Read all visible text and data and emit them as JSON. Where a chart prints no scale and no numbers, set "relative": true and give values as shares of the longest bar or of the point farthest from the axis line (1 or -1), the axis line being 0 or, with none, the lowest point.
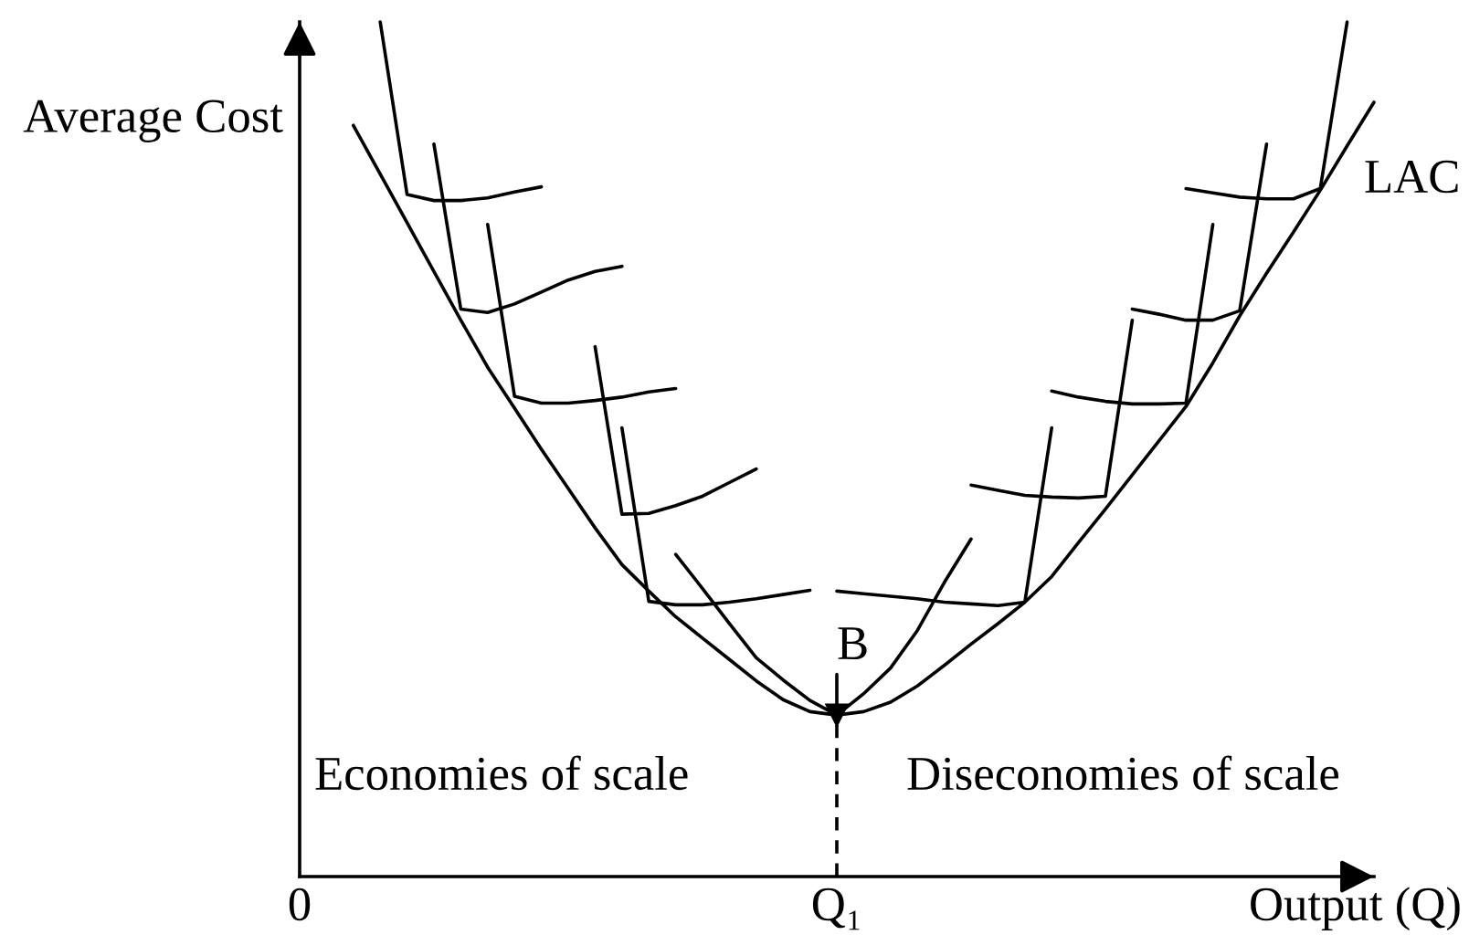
{
  "chart_data": {
    "type": "line",
    "relative": true,
    "xlabel": "Output (Q)",
    "ylabel": "Average Cost",
    "line_style": "solid",
    "categories": [
      "0",
      null,
      null,
      null,
      null,
      null,
      null,
      null,
      null,
      null,
      null,
      null,
      null,
      null,
      null,
      null,
      null,
      null,
      null,
      null,
      "Q₁",
      null,
      null,
      null,
      null,
      null,
      null,
      null,
      null,
      null,
      null,
      null,
      null,
      null,
      null,
      null,
      null,
      null,
      null,
      null,
      null
    ],
    "annotations": [
      {
        "text": "B",
        "x": "Q₁",
        "y": 0.189
      },
      "Economies of scale",
      "Diseconomies of scale"
    ],
    "series": [
      {
        "name": "LAC",
        "color": "#000000",
        "values": [
          null,
          null,
          0.879,
          0.822,
          0.765,
          0.708,
          0.651,
          0.596,
          0.548,
          0.5,
          0.454,
          0.408,
          0.365,
          0.334,
          0.304,
          0.279,
          0.254,
          0.229,
          0.207,
          0.193,
          0.189,
          0.193,
          0.204,
          0.223,
          0.247,
          0.272,
          0.296,
          0.321,
          0.351,
          0.391,
          0.43,
          0.47,
          0.51,
          0.55,
          0.601,
          0.656,
          0.706,
          0.754,
          0.803,
          0.855,
          0.906
        ]
      },
      {
        "color": "#000000",
        "values": [
          null,
          null,
          null,
          1.0,
          0.798,
          0.791,
          0.791,
          0.794,
          0.801,
          0.807,
          null,
          null,
          null,
          null,
          null,
          null,
          null,
          null,
          null,
          null,
          null,
          null,
          null,
          null,
          null,
          null,
          null,
          null,
          null,
          null,
          null,
          null,
          null,
          null,
          null,
          null,
          null,
          null,
          null,
          null,
          null
        ]
      },
      {
        "color": "#000000",
        "values": [
          null,
          null,
          null,
          null,
          null,
          0.857,
          0.664,
          0.66,
          0.67,
          0.684,
          0.698,
          0.708,
          0.714,
          null,
          null,
          null,
          null,
          null,
          null,
          null,
          null,
          null,
          null,
          null,
          null,
          null,
          null,
          null,
          null,
          null,
          null,
          null,
          null,
          null,
          null,
          null,
          null,
          null,
          null,
          null,
          null
        ]
      },
      {
        "color": "#000000",
        "values": [
          null,
          null,
          null,
          null,
          null,
          null,
          null,
          0.763,
          0.562,
          0.554,
          0.554,
          0.557,
          0.561,
          0.567,
          0.571,
          null,
          null,
          null,
          null,
          null,
          null,
          null,
          null,
          null,
          null,
          null,
          null,
          null,
          null,
          null,
          null,
          null,
          null,
          null,
          null,
          null,
          null,
          null,
          null,
          null,
          null
        ]
      },
      {
        "color": "#000000",
        "values": [
          null,
          null,
          null,
          null,
          null,
          null,
          null,
          null,
          null,
          null,
          null,
          0.62,
          0.424,
          0.425,
          0.434,
          0.445,
          0.461,
          0.477,
          null,
          null,
          null,
          null,
          null,
          null,
          null,
          null,
          null,
          null,
          null,
          null,
          null,
          null,
          null,
          null,
          null,
          null,
          null,
          null,
          null,
          null,
          null
        ]
      },
      {
        "color": "#000000",
        "values": [
          null,
          null,
          null,
          null,
          null,
          null,
          null,
          null,
          null,
          null,
          null,
          null,
          0.525,
          0.322,
          0.318,
          0.318,
          0.321,
          0.325,
          0.33,
          0.335,
          null,
          null,
          null,
          null,
          null,
          null,
          null,
          null,
          null,
          null,
          null,
          null,
          null,
          null,
          null,
          null,
          null,
          null,
          null,
          null,
          null
        ]
      },
      {
        "color": "#000000",
        "values": [
          null,
          null,
          null,
          null,
          null,
          null,
          null,
          null,
          null,
          null,
          null,
          null,
          null,
          null,
          0.377,
          0.337,
          0.296,
          0.256,
          0.23,
          0.206,
          0.189,
          0.214,
          0.244,
          0.288,
          0.344,
          0.395,
          null,
          null,
          null,
          null,
          null,
          null,
          null,
          null,
          null,
          null,
          null,
          null,
          null,
          null,
          null
        ]
      },
      {
        "color": "#000000",
        "values": [
          null,
          null,
          null,
          null,
          null,
          null,
          null,
          null,
          null,
          null,
          null,
          null,
          null,
          null,
          null,
          null,
          null,
          null,
          null,
          null,
          0.334,
          0.331,
          0.328,
          0.325,
          0.321,
          0.319,
          0.317,
          0.321,
          0.525,
          null,
          null,
          null,
          null,
          null,
          null,
          null,
          null,
          null,
          null,
          null,
          null
        ]
      },
      {
        "color": "#000000",
        "values": [
          null,
          null,
          null,
          null,
          null,
          null,
          null,
          null,
          null,
          null,
          null,
          null,
          null,
          null,
          null,
          null,
          null,
          null,
          null,
          null,
          null,
          null,
          null,
          null,
          null,
          0.458,
          0.452,
          0.446,
          0.444,
          0.443,
          0.445,
          0.651,
          null,
          null,
          null,
          null,
          null,
          null,
          null,
          null,
          null
        ]
      },
      {
        "color": "#000000",
        "values": [
          null,
          null,
          null,
          null,
          null,
          null,
          null,
          null,
          null,
          null,
          null,
          null,
          null,
          null,
          null,
          null,
          null,
          null,
          null,
          null,
          null,
          null,
          null,
          null,
          null,
          null,
          null,
          null,
          0.568,
          0.561,
          0.556,
          0.553,
          0.553,
          0.554,
          0.763,
          null,
          null,
          null,
          null,
          null,
          null
        ]
      },
      {
        "color": "#000000",
        "values": [
          null,
          null,
          null,
          null,
          null,
          null,
          null,
          null,
          null,
          null,
          null,
          null,
          null,
          null,
          null,
          null,
          null,
          null,
          null,
          null,
          null,
          null,
          null,
          null,
          null,
          null,
          null,
          null,
          null,
          null,
          null,
          0.664,
          0.658,
          0.651,
          0.651,
          0.662,
          0.857,
          null,
          null,
          null,
          null
        ]
      },
      {
        "color": "#000000",
        "values": [
          null,
          null,
          null,
          null,
          null,
          null,
          null,
          null,
          null,
          null,
          null,
          null,
          null,
          null,
          null,
          null,
          null,
          null,
          null,
          null,
          null,
          null,
          null,
          null,
          null,
          null,
          null,
          null,
          null,
          null,
          null,
          null,
          null,
          0.805,
          0.8,
          0.795,
          0.793,
          0.793,
          0.805,
          1.0,
          null
        ]
      },
      {
        "type": "lollipop",
        "color": "#000000",
        "marker": "triangle",
        "line_style": "dashed",
        "values": [
          null,
          null,
          null,
          null,
          null,
          null,
          null,
          null,
          null,
          null,
          null,
          null,
          null,
          null,
          null,
          null,
          null,
          null,
          null,
          null,
          0.189,
          null,
          null,
          null,
          null,
          null,
          null,
          null,
          null,
          null,
          null,
          null,
          null,
          null,
          null,
          null,
          null,
          null,
          null,
          null,
          null
        ]
      }
    ]
  }
}
